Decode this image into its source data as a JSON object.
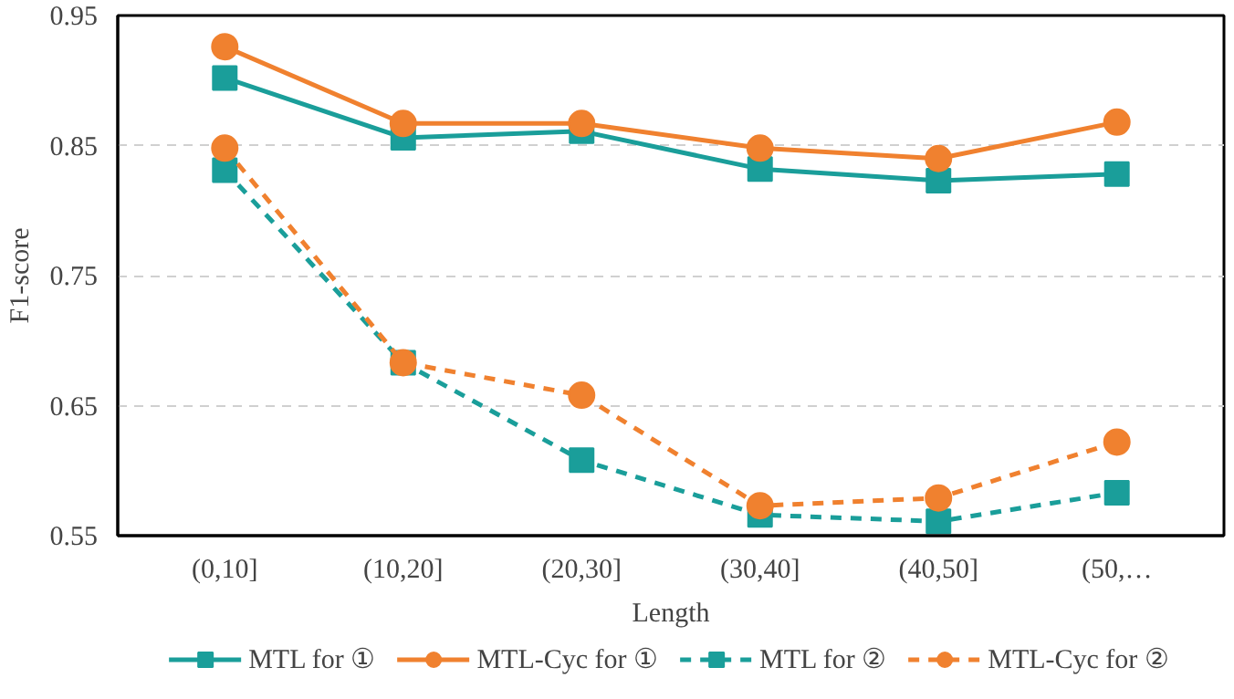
{
  "chart_data": {
    "type": "line",
    "xlabel": "Length",
    "ylabel": "F1-score",
    "categories": [
      "(0,10]",
      "(10,20]",
      "(20,30]",
      "(30,40]",
      "(40,50]",
      "(50,…"
    ],
    "ylim": [
      0.55,
      0.95
    ],
    "yticks": [
      0.55,
      0.65,
      0.75,
      0.85,
      0.95
    ],
    "grid": "y",
    "legend": "bottom",
    "series": [
      {
        "name": "MTL for ①",
        "color": "#1a9e9a",
        "marker": "square",
        "line_style": "solid",
        "values": [
          0.902,
          0.856,
          0.861,
          0.832,
          0.823,
          0.828
        ]
      },
      {
        "name": "MTL-Cyc for ①",
        "color": "#f0812f",
        "marker": "circle",
        "line_style": "solid",
        "values": [
          0.926,
          0.867,
          0.867,
          0.848,
          0.84,
          0.868
        ]
      },
      {
        "name": "MTL for ②",
        "color": "#1a9e9a",
        "marker": "square",
        "line_style": "dashed",
        "values": [
          0.831,
          0.683,
          0.608,
          0.566,
          0.561,
          0.583
        ]
      },
      {
        "name": "MTL-Cyc for ②",
        "color": "#f0812f",
        "marker": "circle",
        "line_style": "dashed",
        "values": [
          0.848,
          0.683,
          0.658,
          0.573,
          0.579,
          0.622
        ]
      }
    ]
  }
}
